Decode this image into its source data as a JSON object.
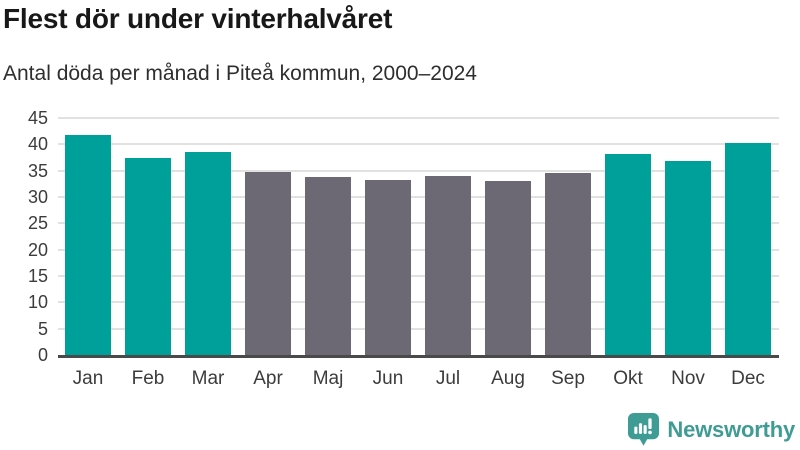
{
  "header": {
    "title": "Flest dör under vinterhalvåret",
    "subtitle": "Antal döda per månad i Piteå kommun, 2000–2024"
  },
  "chart_data": {
    "type": "bar",
    "title": "Flest dör under vinterhalvåret",
    "subtitle": "Antal döda per månad i Piteå kommun, 2000–2024",
    "categories": [
      "Jan",
      "Feb",
      "Mar",
      "Apr",
      "Maj",
      "Jun",
      "Jul",
      "Aug",
      "Sep",
      "Okt",
      "Nov",
      "Dec"
    ],
    "values": [
      41.7,
      37.5,
      38.6,
      34.8,
      33.8,
      33.3,
      34.0,
      33.0,
      34.5,
      38.2,
      36.8,
      40.3
    ],
    "bar_groups": [
      "winter",
      "winter",
      "winter",
      "summer",
      "summer",
      "summer",
      "summer",
      "summer",
      "summer",
      "winter",
      "winter",
      "winter"
    ],
    "group_colors": {
      "winter": "#00a09a",
      "summer": "#6c6874"
    },
    "xlabel": "",
    "ylabel": "",
    "ylim": [
      0,
      45
    ],
    "yticks": [
      0,
      5,
      10,
      15,
      20,
      25,
      30,
      35,
      40,
      45
    ],
    "grid": true,
    "legend": "none",
    "gridline_color": "#e1e1e1",
    "axis_line_color": "#4a4a4a"
  },
  "footer": {
    "brand": "Newsworthy",
    "brand_color": "#3f9c95",
    "logo_icon": "newsworthy-chart-bubble-icon"
  }
}
